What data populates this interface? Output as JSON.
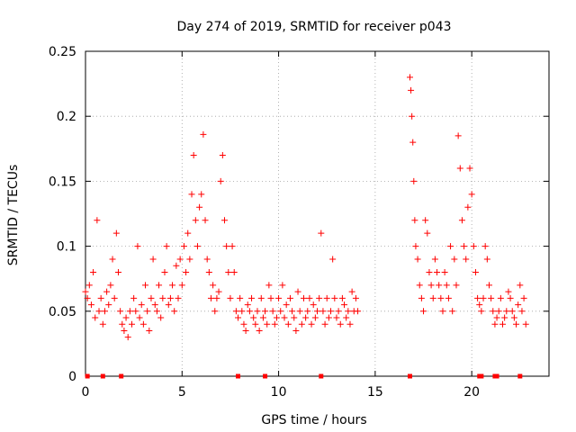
{
  "chart_data": {
    "type": "scatter",
    "title": "Day 274 of 2019, SRMTID for receiver p043",
    "xlabel": "GPS time / hours",
    "ylabel": "SRMTID / TECUs",
    "xlim": [
      0,
      24
    ],
    "ylim": [
      0,
      0.25
    ],
    "x_ticks": [
      0,
      5,
      10,
      15,
      20
    ],
    "y_ticks": [
      0,
      0.05,
      0.1,
      0.15,
      0.2,
      0.25
    ],
    "x_tick_labels": [
      "0",
      "5",
      "10",
      "15",
      "20"
    ],
    "y_tick_labels": [
      "0",
      "0.05",
      "0.1",
      "0.15",
      "0.2",
      "0.25"
    ],
    "grid": true,
    "marker": "+",
    "color": "#ff0000",
    "series": [
      {
        "name": "SRMTID",
        "x": [
          0.0,
          0.1,
          0.2,
          0.3,
          0.4,
          0.5,
          0.6,
          0.7,
          0.8,
          0.9,
          1.0,
          1.1,
          1.2,
          1.3,
          1.4,
          1.5,
          1.6,
          1.7,
          1.8,
          1.9,
          2.0,
          2.1,
          2.2,
          2.3,
          2.4,
          2.5,
          2.6,
          2.7,
          2.8,
          2.9,
          3.0,
          3.1,
          3.2,
          3.3,
          3.4,
          3.5,
          3.6,
          3.7,
          3.8,
          3.9,
          4.0,
          4.1,
          4.2,
          4.3,
          4.4,
          4.5,
          4.6,
          4.7,
          4.8,
          4.9,
          5.0,
          5.1,
          5.2,
          5.3,
          5.4,
          5.5,
          5.6,
          5.7,
          5.8,
          5.9,
          6.0,
          6.1,
          6.2,
          6.3,
          6.4,
          6.5,
          6.6,
          6.7,
          6.8,
          6.9,
          7.0,
          7.1,
          7.2,
          7.3,
          7.4,
          7.5,
          7.6,
          7.7,
          7.8,
          7.9,
          8.0,
          8.1,
          8.2,
          8.3,
          8.4,
          8.5,
          8.6,
          8.7,
          8.8,
          8.9,
          9.0,
          9.1,
          9.2,
          9.3,
          9.4,
          9.5,
          9.6,
          9.7,
          9.8,
          9.9,
          10.0,
          10.1,
          10.2,
          10.3,
          10.4,
          10.5,
          10.6,
          10.7,
          10.8,
          10.9,
          11.0,
          11.1,
          11.2,
          11.3,
          11.4,
          11.5,
          11.6,
          11.7,
          11.8,
          11.9,
          12.0,
          12.1,
          12.2,
          12.3,
          12.4,
          12.5,
          12.6,
          12.7,
          12.8,
          12.9,
          13.0,
          13.1,
          13.2,
          13.3,
          13.4,
          13.5,
          13.6,
          13.7,
          13.8,
          13.9,
          14.0,
          14.1,
          16.8,
          16.85,
          16.9,
          16.95,
          17.0,
          17.05,
          17.1,
          17.2,
          17.3,
          17.4,
          17.5,
          17.6,
          17.7,
          17.8,
          17.9,
          18.0,
          18.1,
          18.2,
          18.3,
          18.4,
          18.5,
          18.6,
          18.7,
          18.8,
          18.9,
          19.0,
          19.1,
          19.2,
          19.3,
          19.4,
          19.5,
          19.6,
          19.7,
          19.8,
          19.9,
          20.0,
          20.1,
          20.2,
          20.3,
          20.4,
          20.5,
          20.6,
          20.7,
          20.8,
          20.9,
          21.0,
          21.1,
          21.2,
          21.3,
          21.4,
          21.5,
          21.6,
          21.7,
          21.8,
          21.9,
          22.0,
          22.1,
          22.2,
          22.3,
          22.4,
          22.5,
          22.6,
          22.7,
          22.8
        ],
        "y": [
          0.065,
          0.06,
          0.07,
          0.055,
          0.08,
          0.045,
          0.12,
          0.05,
          0.06,
          0.04,
          0.05,
          0.065,
          0.055,
          0.07,
          0.09,
          0.06,
          0.11,
          0.08,
          0.05,
          0.04,
          0.035,
          0.045,
          0.03,
          0.05,
          0.04,
          0.06,
          0.05,
          0.1,
          0.045,
          0.055,
          0.04,
          0.07,
          0.05,
          0.035,
          0.06,
          0.09,
          0.055,
          0.05,
          0.07,
          0.045,
          0.06,
          0.08,
          0.1,
          0.055,
          0.06,
          0.07,
          0.05,
          0.085,
          0.06,
          0.09,
          0.07,
          0.1,
          0.08,
          0.11,
          0.09,
          0.14,
          0.17,
          0.12,
          0.1,
          0.13,
          0.14,
          0.186,
          0.12,
          0.09,
          0.08,
          0.06,
          0.07,
          0.05,
          0.06,
          0.065,
          0.15,
          0.17,
          0.12,
          0.1,
          0.08,
          0.06,
          0.1,
          0.08,
          0.05,
          0.045,
          0.06,
          0.05,
          0.04,
          0.035,
          0.055,
          0.05,
          0.06,
          0.045,
          0.04,
          0.05,
          0.035,
          0.06,
          0.045,
          0.05,
          0.04,
          0.07,
          0.06,
          0.05,
          0.04,
          0.045,
          0.06,
          0.05,
          0.07,
          0.045,
          0.055,
          0.04,
          0.06,
          0.05,
          0.045,
          0.035,
          0.065,
          0.05,
          0.04,
          0.06,
          0.045,
          0.05,
          0.06,
          0.04,
          0.055,
          0.045,
          0.05,
          0.06,
          0.11,
          0.05,
          0.04,
          0.06,
          0.045,
          0.05,
          0.09,
          0.06,
          0.045,
          0.05,
          0.04,
          0.06,
          0.055,
          0.045,
          0.05,
          0.04,
          0.065,
          0.05,
          0.06,
          0.05,
          0.23,
          0.22,
          0.2,
          0.18,
          0.15,
          0.12,
          0.1,
          0.09,
          0.07,
          0.06,
          0.05,
          0.12,
          0.11,
          0.08,
          0.07,
          0.06,
          0.09,
          0.08,
          0.07,
          0.06,
          0.05,
          0.08,
          0.07,
          0.06,
          0.1,
          0.05,
          0.09,
          0.07,
          0.185,
          0.16,
          0.12,
          0.1,
          0.09,
          0.13,
          0.16,
          0.14,
          0.1,
          0.08,
          0.06,
          0.055,
          0.05,
          0.06,
          0.1,
          0.09,
          0.07,
          0.06,
          0.05,
          0.04,
          0.045,
          0.05,
          0.06,
          0.04,
          0.045,
          0.05,
          0.065,
          0.06,
          0.05,
          0.045,
          0.04,
          0.055,
          0.07,
          0.05,
          0.06,
          0.04
        ]
      }
    ],
    "bottom_markers_x": [
      0.1,
      0.9,
      1.85,
      7.9,
      9.3,
      12.2,
      16.8,
      20.4,
      20.5,
      21.2,
      21.3,
      22.5
    ]
  }
}
